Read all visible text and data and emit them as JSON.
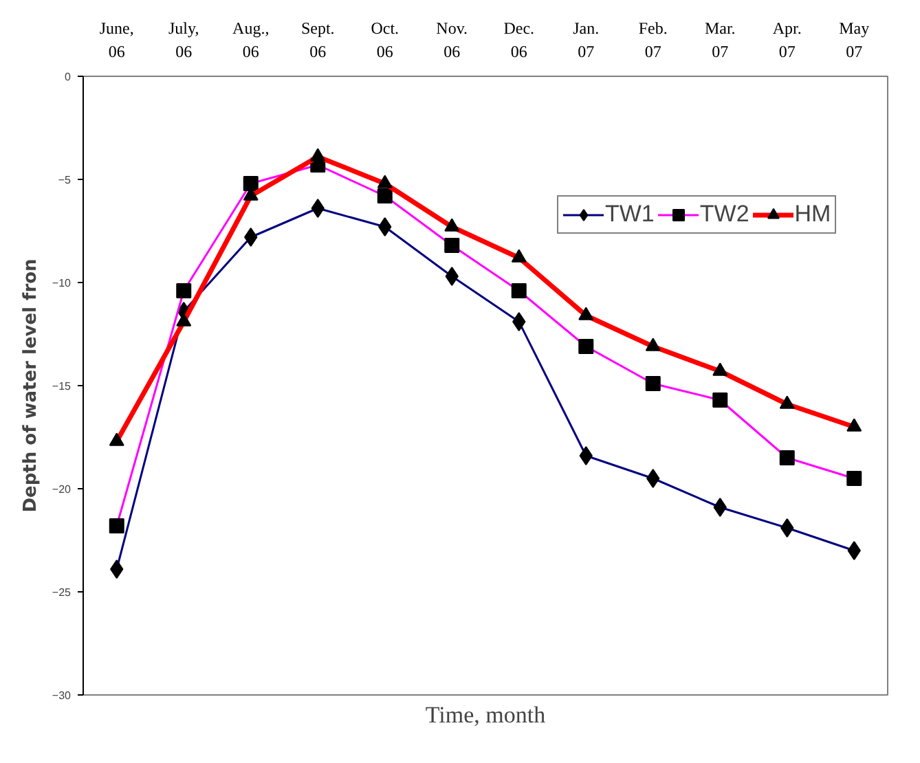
{
  "chart_data": {
    "type": "line",
    "xlabel": "Time, month",
    "ylabel": "Depth of water level fron",
    "categories": [
      "June,\n06",
      "July,\n06",
      "Aug.,\n06",
      "Sept.\n06",
      "Oct.\n06",
      "Nov.\n06",
      "Dec.\n06",
      "Jan.\n07",
      "Feb.\n07",
      "Mar.\n07",
      "Apr.\n07",
      "May\n07"
    ],
    "ylim": [
      -30,
      0
    ],
    "yticks": [
      -30,
      -25,
      -20,
      -15,
      -10,
      -5,
      0
    ],
    "grid": false,
    "legend": "top right",
    "series": [
      {
        "name": "TW1",
        "color": "#000080",
        "marker": "diamond",
        "values": [
          -23.9,
          -11.4,
          -7.8,
          -6.4,
          -7.3,
          -9.7,
          -11.9,
          -18.4,
          -19.5,
          -20.9,
          -21.9,
          -23.0
        ]
      },
      {
        "name": "TW2",
        "color": "#ff00ff",
        "marker": "square",
        "values": [
          -21.8,
          -10.4,
          -5.2,
          -4.3,
          -5.8,
          -8.2,
          -10.4,
          -13.1,
          -14.9,
          -15.7,
          -18.5,
          -19.5
        ]
      },
      {
        "name": "HM",
        "color": "#ff0000",
        "marker": "triangle",
        "values": [
          -17.7,
          -11.9,
          -5.8,
          -3.9,
          -5.2,
          -7.3,
          -8.8,
          -11.6,
          -13.1,
          -14.3,
          -15.9,
          -17.0
        ]
      }
    ]
  }
}
